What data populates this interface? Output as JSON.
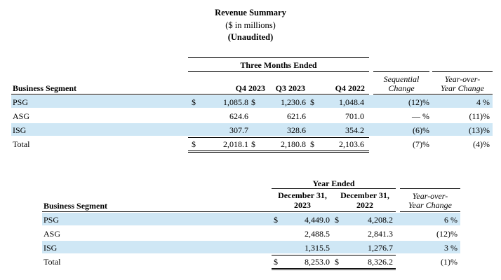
{
  "header": {
    "title": "Revenue Summary",
    "units": "($ in millions)",
    "audit": "(Unaudited)"
  },
  "quarterly": {
    "group_header": "Three Months Ended",
    "segment_header": "Business Segment",
    "columns": [
      "Q4 2023",
      "Q3 2023",
      "Q4 2022"
    ],
    "seq_header_1": "Sequential",
    "seq_header_2": "Change",
    "yoy_header_1": "Year-over-",
    "yoy_header_2": "Year Change",
    "rows": [
      {
        "segment": "PSG",
        "c1": "1,085.8",
        "c2": "1,230.6",
        "c3": "1,048.4",
        "seq": "(12)%",
        "yoy": "4 %",
        "dollar": true
      },
      {
        "segment": "ASG",
        "c1": "624.6",
        "c2": "621.6",
        "c3": "701.0",
        "seq": "— %",
        "yoy": "(11)%",
        "dollar": false
      },
      {
        "segment": "ISG",
        "c1": "307.7",
        "c2": "328.6",
        "c3": "354.2",
        "seq": "(6)%",
        "yoy": "(13)%",
        "dollar": false
      },
      {
        "segment": "Total",
        "c1": "2,018.1",
        "c2": "2,180.8",
        "c3": "2,103.6",
        "seq": "(7)%",
        "yoy": "(4)%",
        "dollar": true
      }
    ]
  },
  "annual": {
    "group_header": "Year Ended",
    "segment_header": "Business Segment",
    "col1_line1": "December 31,",
    "col1_line2": "2023",
    "col2_line1": "December 31,",
    "col2_line2": "2022",
    "yoy_header_1": "Year-over-",
    "yoy_header_2": "Year Change",
    "rows": [
      {
        "segment": "PSG",
        "c1": "4,449.0",
        "c2": "4,208.2",
        "yoy": "6 %",
        "dollar": true
      },
      {
        "segment": "ASG",
        "c1": "2,488.5",
        "c2": "2,841.3",
        "yoy": "(12)%",
        "dollar": false
      },
      {
        "segment": "ISG",
        "c1": "1,315.5",
        "c2": "1,276.7",
        "yoy": "3 %",
        "dollar": false
      },
      {
        "segment": "Total",
        "c1": "8,253.0",
        "c2": "8,326.2",
        "yoy": "(1)%",
        "dollar": true
      }
    ],
    "dollar_sign": "$"
  }
}
